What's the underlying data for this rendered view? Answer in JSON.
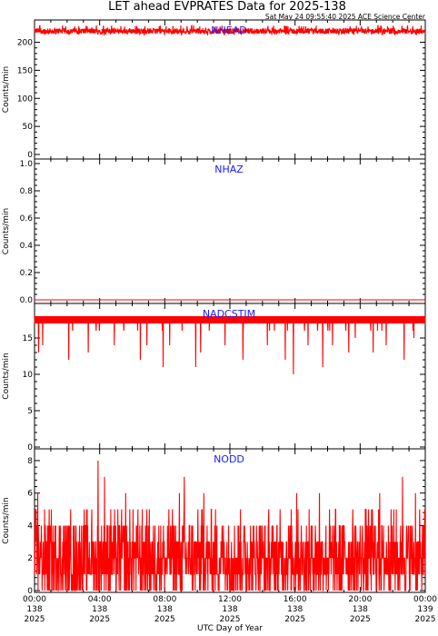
{
  "header": {
    "title": "LET ahead EVPRATES Data for 2025-138",
    "timestamp": "Sat May 24 09:55:40 2025 ACE Science Center"
  },
  "xaxis": {
    "label": "UTC Day of Year",
    "ticks": [
      {
        "time": "00:00",
        "doy": "138",
        "year": "2025"
      },
      {
        "time": "04:00",
        "doy": "138",
        "year": "2025"
      },
      {
        "time": "08:00",
        "doy": "138",
        "year": "2025"
      },
      {
        "time": "12:00",
        "doy": "138",
        "year": "2025"
      },
      {
        "time": "16:00",
        "doy": "138",
        "year": "2025"
      },
      {
        "time": "20:00",
        "doy": "138",
        "year": "2025"
      },
      {
        "time": "00:00",
        "doy": "139",
        "year": "2025"
      }
    ]
  },
  "colors": {
    "series": "#ff0000",
    "panel_label": "#1a1aff",
    "axis": "#000000"
  },
  "chart_data": [
    {
      "type": "line",
      "title": "NHEAD",
      "ylabel": "Counts/min",
      "ylim": [
        0,
        230
      ],
      "yticks": [
        "0",
        "50",
        "100",
        "150",
        "200"
      ],
      "x_range_hours": [
        0,
        24
      ],
      "series": [
        {
          "name": "NHEAD",
          "baseline": 220,
          "min": 212,
          "max": 230,
          "values_hourly": [
            221,
            219,
            222,
            220,
            218,
            221,
            220,
            222,
            219,
            220,
            221,
            219,
            220,
            222,
            218,
            220,
            221,
            219,
            220,
            221,
            222,
            219,
            220,
            218
          ]
        }
      ]
    },
    {
      "type": "line",
      "title": "NHAZ",
      "ylabel": "Counts/min",
      "ylim": [
        0,
        1
      ],
      "yticks": [
        "0.0",
        "0.2",
        "0.4",
        "0.6",
        "0.8",
        "1.0"
      ],
      "x_range_hours": [
        0,
        24
      ],
      "series": [
        {
          "name": "NHAZ",
          "constant": 0.0
        }
      ]
    },
    {
      "type": "line",
      "title": "NADCSTIM",
      "ylabel": "Counts/min",
      "ylim": [
        0,
        19
      ],
      "yticks": [
        "0",
        "5",
        "10",
        "15"
      ],
      "x_range_hours": [
        0,
        24
      ],
      "series": [
        {
          "name": "NADCSTIM",
          "baseline": 17.5,
          "band": [
            17,
            18
          ],
          "dips": [
            [
              0.25,
              13
            ],
            [
              0.5,
              14
            ],
            [
              2.1,
              12
            ],
            [
              3.3,
              13
            ],
            [
              4.9,
              14
            ],
            [
              6.5,
              12
            ],
            [
              6.9,
              14
            ],
            [
              7.9,
              11
            ],
            [
              8.3,
              14
            ],
            [
              9.9,
              11
            ],
            [
              10.2,
              13
            ],
            [
              11.7,
              14
            ],
            [
              12.8,
              12
            ],
            [
              14.3,
              14
            ],
            [
              15.4,
              12
            ],
            [
              15.9,
              10
            ],
            [
              16.8,
              14
            ],
            [
              17.7,
              11
            ],
            [
              18.3,
              14
            ],
            [
              19.3,
              13
            ],
            [
              19.7,
              15
            ],
            [
              20.8,
              13
            ],
            [
              21.6,
              14
            ],
            [
              22.7,
              12
            ],
            [
              23.3,
              15
            ]
          ]
        }
      ]
    },
    {
      "type": "line",
      "title": "NODD",
      "ylabel": "Counts/min",
      "ylim": [
        0,
        8.5
      ],
      "yticks": [
        "0",
        "2",
        "4",
        "6",
        "8"
      ],
      "x_range_hours": [
        0,
        24
      ],
      "series": [
        {
          "name": "NODD",
          "typical_range": [
            0,
            5
          ],
          "mean": 2,
          "peaks": [
            [
              0.2,
              6
            ],
            [
              3.9,
              8
            ],
            [
              4.3,
              7
            ],
            [
              5.6,
              6
            ],
            [
              8.9,
              6
            ],
            [
              9.2,
              7
            ],
            [
              10.4,
              6
            ],
            [
              16.1,
              6
            ],
            [
              17.5,
              6
            ],
            [
              21.2,
              6
            ],
            [
              22.6,
              7
            ],
            [
              23.4,
              6
            ]
          ]
        }
      ]
    }
  ]
}
